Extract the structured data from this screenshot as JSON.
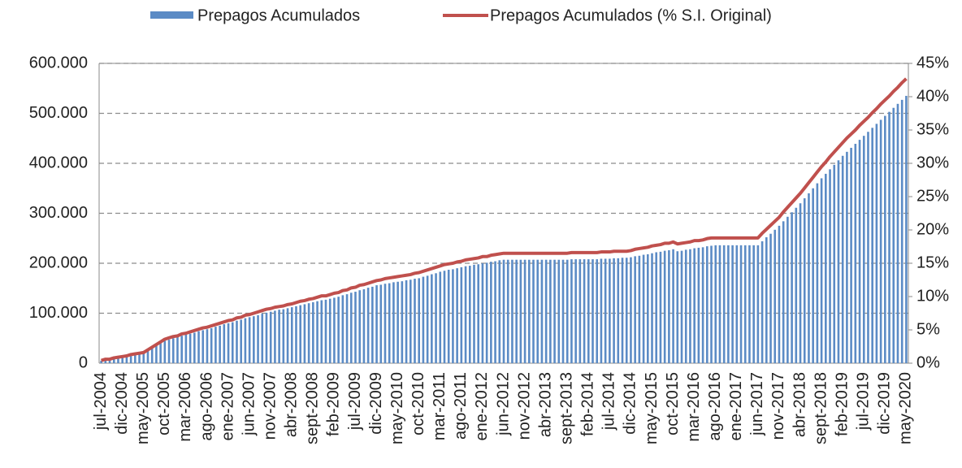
{
  "chart_data": {
    "type": "bar-line",
    "categories": [
      "jul-2004",
      null,
      null,
      null,
      null,
      "dic-2004",
      null,
      null,
      null,
      null,
      "may-2005",
      null,
      null,
      null,
      null,
      "oct-2005",
      null,
      null,
      null,
      null,
      "mar-2006",
      null,
      null,
      null,
      null,
      "ago-2006",
      null,
      null,
      null,
      null,
      "ene-2007",
      null,
      null,
      null,
      null,
      "jun-2007",
      null,
      null,
      null,
      null,
      "nov-2007",
      null,
      null,
      null,
      null,
      "abr-2008",
      null,
      null,
      null,
      null,
      "sept-2008",
      null,
      null,
      null,
      null,
      "feb-2009",
      null,
      null,
      null,
      null,
      "jul-2009",
      null,
      null,
      null,
      null,
      "dic-2009",
      null,
      null,
      null,
      null,
      "may-2010",
      null,
      null,
      null,
      null,
      "oct-2010",
      null,
      null,
      null,
      null,
      "mar-2011",
      null,
      null,
      null,
      null,
      "ago-2011",
      null,
      null,
      null,
      null,
      "ene-2012",
      null,
      null,
      null,
      null,
      "jun-2012",
      null,
      null,
      null,
      null,
      "nov-2012",
      null,
      null,
      null,
      null,
      "abr-2013",
      null,
      null,
      null,
      null,
      "sept-2013",
      null,
      null,
      null,
      null,
      "feb-2014",
      null,
      null,
      null,
      null,
      "jul-2014",
      null,
      null,
      null,
      null,
      "dic-2014",
      null,
      null,
      null,
      null,
      "may-2015",
      null,
      null,
      null,
      null,
      "oct-2015",
      null,
      null,
      null,
      null,
      "mar-2016",
      null,
      null,
      null,
      null,
      "ago-2016",
      null,
      null,
      null,
      null,
      "ene-2017",
      null,
      null,
      null,
      null,
      "jun-2017",
      null,
      null,
      null,
      null,
      "nov-2017",
      null,
      null,
      null,
      null,
      "abr-2018",
      null,
      null,
      null,
      null,
      "sept-2018",
      null,
      null,
      null,
      null,
      "feb-2019",
      null,
      null,
      null,
      null,
      "jul-2019",
      null,
      null,
      null,
      null,
      "dic-2019",
      null,
      null,
      null,
      null,
      "may-2020"
    ],
    "series": [
      {
        "name": "Prepagos Acumulados",
        "type": "bar",
        "color": "#5b8bc5",
        "values": [
          5000,
          7000,
          8000,
          10000,
          11000,
          13000,
          14000,
          16000,
          17000,
          19000,
          20000,
          25000,
          30000,
          35000,
          40000,
          45000,
          47000,
          50000,
          52000,
          55000,
          57000,
          59000,
          61000,
          64000,
          66000,
          68000,
          70000,
          73000,
          75000,
          78000,
          80000,
          82000,
          85000,
          87000,
          90000,
          92000,
          94000,
          96000,
          99000,
          101000,
          103000,
          105000,
          107000,
          108000,
          110000,
          112000,
          114000,
          116000,
          118000,
          120000,
          122000,
          124000,
          126000,
          127000,
          129000,
          131000,
          133000,
          136000,
          138000,
          141000,
          143000,
          146000,
          148000,
          151000,
          153000,
          156000,
          157000,
          159000,
          160000,
          162000,
          163000,
          164000,
          166000,
          167000,
          169000,
          170000,
          173000,
          175000,
          178000,
          180000,
          183000,
          185000,
          187000,
          188000,
          190000,
          192000,
          194000,
          195000,
          197000,
          198000,
          200000,
          201000,
          203000,
          204000,
          206000,
          207000,
          207000,
          207000,
          207000,
          207000,
          207000,
          207000,
          207000,
          207000,
          207000,
          207000,
          207000,
          207000,
          207000,
          207000,
          207000,
          208000,
          208000,
          208000,
          208000,
          208000,
          208000,
          208000,
          209000,
          209000,
          209000,
          210000,
          210000,
          211000,
          211000,
          212000,
          214000,
          215000,
          217000,
          218000,
          220000,
          222000,
          223000,
          225000,
          226000,
          228000,
          224000,
          225000,
          227000,
          228000,
          230000,
          231000,
          232000,
          234000,
          235000,
          236000,
          236000,
          236000,
          236000,
          236000,
          236000,
          236000,
          236000,
          236000,
          236000,
          236000,
          244000,
          252000,
          259000,
          267000,
          275000,
          284000,
          293000,
          302000,
          311000,
          320000,
          330000,
          340000,
          350000,
          360000,
          370000,
          379000,
          388000,
          397000,
          406000,
          415000,
          423000,
          431000,
          439000,
          447000,
          455000,
          463000,
          471000,
          479000,
          487000,
          495000,
          503000,
          511000,
          519000,
          527000,
          535000
        ]
      },
      {
        "name": "Prepagos Acumulados (% S.I. Original)",
        "type": "line",
        "axis": "y2",
        "color": "#c0504d",
        "values": [
          0.4,
          0.6,
          0.6,
          0.8,
          0.9,
          1.0,
          1.1,
          1.3,
          1.4,
          1.5,
          1.6,
          2.0,
          2.4,
          2.8,
          3.2,
          3.6,
          3.8,
          4.0,
          4.1,
          4.4,
          4.5,
          4.7,
          4.9,
          5.1,
          5.3,
          5.4,
          5.6,
          5.8,
          6.0,
          6.2,
          6.4,
          6.5,
          6.8,
          6.9,
          7.2,
          7.3,
          7.5,
          7.7,
          7.9,
          8.1,
          8.2,
          8.4,
          8.5,
          8.6,
          8.8,
          8.9,
          9.1,
          9.3,
          9.4,
          9.6,
          9.7,
          9.9,
          10.1,
          10.1,
          10.3,
          10.5,
          10.6,
          10.9,
          11.0,
          11.3,
          11.4,
          11.7,
          11.8,
          12.0,
          12.2,
          12.4,
          12.5,
          12.7,
          12.8,
          12.9,
          13.0,
          13.1,
          13.2,
          13.3,
          13.5,
          13.6,
          13.8,
          14.0,
          14.2,
          14.4,
          14.6,
          14.8,
          14.9,
          15.0,
          15.2,
          15.3,
          15.5,
          15.6,
          15.7,
          15.8,
          16.0,
          16.0,
          16.2,
          16.3,
          16.4,
          16.5,
          16.5,
          16.5,
          16.5,
          16.5,
          16.5,
          16.5,
          16.5,
          16.5,
          16.5,
          16.5,
          16.5,
          16.5,
          16.5,
          16.5,
          16.5,
          16.6,
          16.6,
          16.6,
          16.6,
          16.6,
          16.6,
          16.6,
          16.7,
          16.7,
          16.7,
          16.8,
          16.8,
          16.8,
          16.8,
          16.9,
          17.1,
          17.2,
          17.3,
          17.4,
          17.6,
          17.7,
          17.8,
          18.0,
          18.0,
          18.2,
          17.9,
          18.0,
          18.1,
          18.2,
          18.4,
          18.4,
          18.5,
          18.7,
          18.8,
          18.8,
          18.8,
          18.8,
          18.8,
          18.8,
          18.8,
          18.8,
          18.8,
          18.8,
          18.8,
          18.8,
          19.5,
          20.1,
          20.7,
          21.3,
          21.9,
          22.7,
          23.4,
          24.1,
          24.8,
          25.5,
          26.3,
          27.1,
          27.9,
          28.7,
          29.5,
          30.2,
          31.0,
          31.7,
          32.4,
          33.1,
          33.8,
          34.4,
          35.0,
          35.7,
          36.3,
          36.9,
          37.6,
          38.2,
          38.9,
          39.5,
          40.1,
          40.8,
          41.4,
          42.1,
          42.7
        ]
      }
    ],
    "ylim": [
      0,
      600000
    ],
    "yticks": [
      0,
      {
        "value": 100000,
        "label": "100.000"
      },
      {
        "value": 200000,
        "label": "200.000"
      },
      {
        "value": 300000,
        "label": "300.000"
      },
      {
        "value": 400000,
        "label": "400.000"
      },
      {
        "value": 500000,
        "label": "500.000"
      },
      {
        "value": 600000,
        "label": "600.000"
      }
    ],
    "y2lim": [
      0,
      45
    ],
    "y2ticks": [
      {
        "value": 0,
        "label": "0%"
      },
      {
        "value": 5,
        "label": "5%"
      },
      {
        "value": 10,
        "label": "10%"
      },
      {
        "value": 15,
        "label": "15%"
      },
      {
        "value": 20,
        "label": "20%"
      },
      {
        "value": 25,
        "label": "25%"
      },
      {
        "value": 30,
        "label": "30%"
      },
      {
        "value": 35,
        "label": "35%"
      },
      {
        "value": 40,
        "label": "40%"
      },
      {
        "value": 45,
        "label": "45%"
      }
    ],
    "grid": true,
    "legend": "top"
  }
}
